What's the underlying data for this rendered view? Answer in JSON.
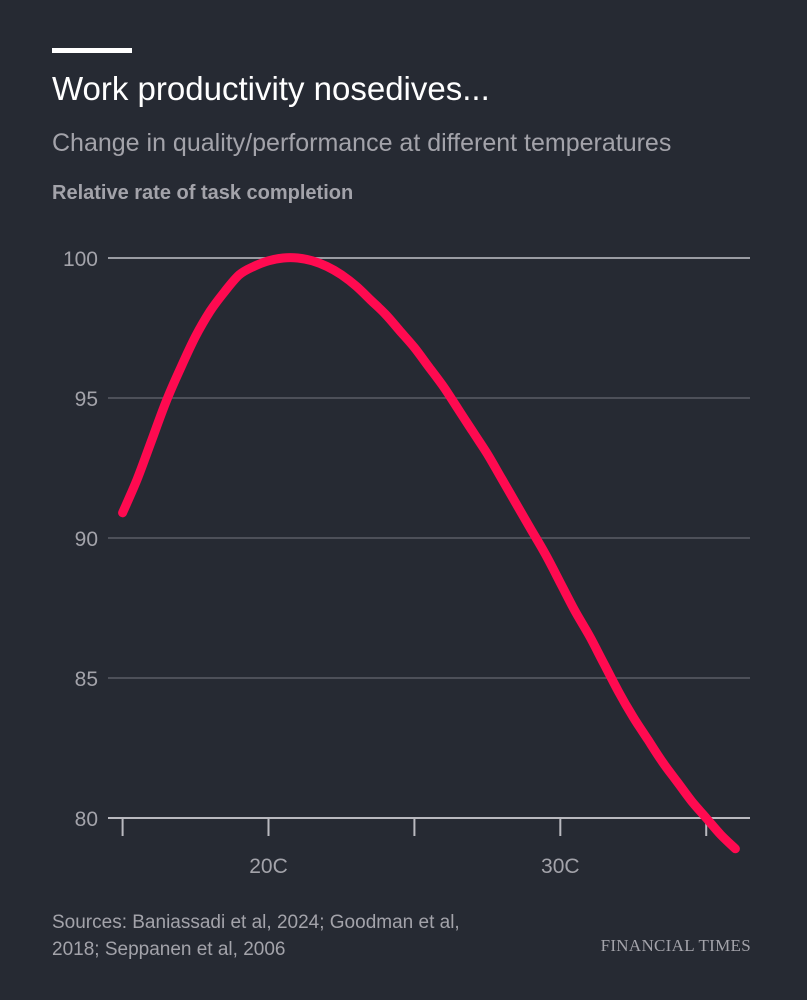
{
  "header": {
    "title": "Work productivity nosedives...",
    "subtitle": "Change in quality/performance at different temperatures"
  },
  "footer": {
    "source": "Sources: Baniassadi et al, 2024; Goodman et al, 2018; Seppanen et al, 2006",
    "brand": "FINANCIAL TIMES"
  },
  "colors": {
    "background": "#262a33",
    "line": "#ff0a50",
    "grid": "#8a8c94",
    "text": "#a3a3aa"
  },
  "chart_data": {
    "type": "line",
    "title": "Work productivity nosedives...",
    "subtitle": "Change in quality/performance at different temperatures",
    "ylabel": "Relative rate of task completion",
    "xlabel": "",
    "xlim": [
      14.5,
      36.5
    ],
    "ylim": [
      80,
      100
    ],
    "yticks": [
      80,
      85,
      90,
      95,
      100
    ],
    "xticks": [
      15,
      20,
      25,
      30,
      35
    ],
    "xtick_labels": [
      "",
      "20C",
      "",
      "30C",
      ""
    ],
    "ytick_labels": [
      "80",
      "85",
      "90",
      "95",
      "100"
    ],
    "grid": true,
    "series": [
      {
        "x": [
          15,
          15.5,
          16,
          16.5,
          17,
          17.5,
          18,
          18.5,
          19,
          19.5,
          20,
          20.5,
          21,
          21.5,
          22,
          22.5,
          23,
          23.5,
          24,
          24.5,
          25,
          25.5,
          26,
          26.5,
          27,
          27.5,
          28,
          28.5,
          29,
          29.5,
          30,
          30.5,
          31,
          31.5,
          32,
          32.5,
          33,
          33.5,
          34,
          34.5,
          35,
          35.5,
          36
        ],
        "y": [
          90.9,
          92.1,
          93.5,
          94.9,
          96.1,
          97.2,
          98.1,
          98.8,
          99.4,
          99.7,
          99.9,
          100.0,
          100.0,
          99.9,
          99.7,
          99.4,
          99.0,
          98.5,
          98.0,
          97.4,
          96.8,
          96.1,
          95.4,
          94.6,
          93.8,
          93.0,
          92.1,
          91.2,
          90.3,
          89.4,
          88.4,
          87.4,
          86.5,
          85.5,
          84.5,
          83.6,
          82.8,
          82.0,
          81.3,
          80.6,
          80.0,
          79.4,
          78.9
        ]
      }
    ]
  }
}
